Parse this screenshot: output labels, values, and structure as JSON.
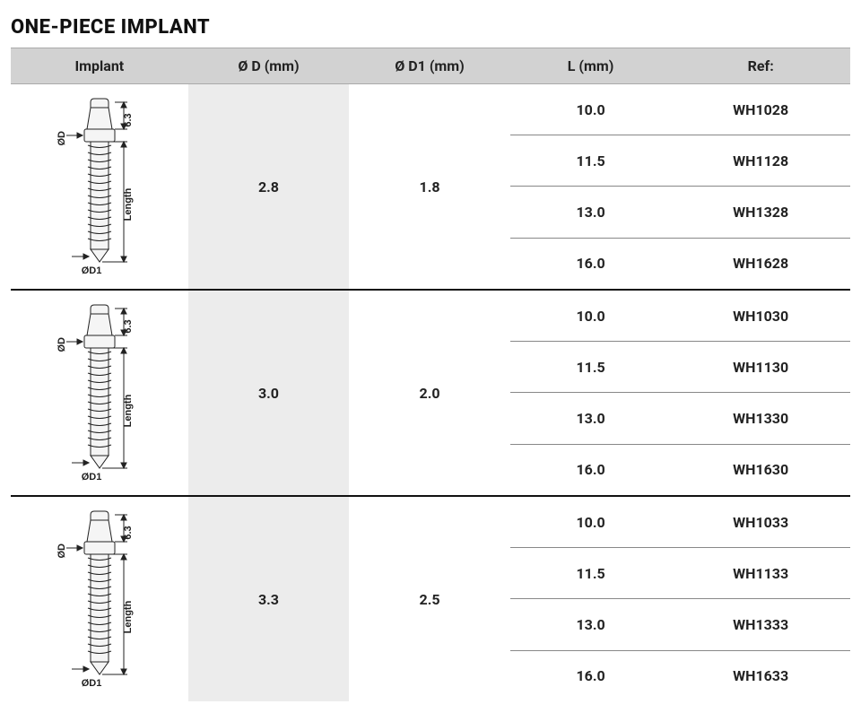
{
  "title": "ONE-PIECE IMPLANT",
  "columns": {
    "implant": "Implant",
    "d": "Ø D (mm)",
    "d1": "Ø D1 (mm)",
    "l": "L (mm)",
    "ref": "Ref:"
  },
  "diagram_labels": {
    "d": "ØD",
    "d1": "ØD1",
    "head_h": "6.3",
    "length": "Length"
  },
  "groups": [
    {
      "d": "2.8",
      "d1": "1.8",
      "rows": [
        {
          "l": "10.0",
          "ref": "WH1028"
        },
        {
          "l": "11.5",
          "ref": "WH1128"
        },
        {
          "l": "13.0",
          "ref": "WH1328"
        },
        {
          "l": "16.0",
          "ref": "WH1628"
        }
      ]
    },
    {
      "d": "3.0",
      "d1": "2.0",
      "rows": [
        {
          "l": "10.0",
          "ref": "WH1030"
        },
        {
          "l": "11.5",
          "ref": "WH1130"
        },
        {
          "l": "13.0",
          "ref": "WH1330"
        },
        {
          "l": "16.0",
          "ref": "WH1630"
        }
      ]
    },
    {
      "d": "3.3",
      "d1": "2.5",
      "rows": [
        {
          "l": "10.0",
          "ref": "WH1033"
        },
        {
          "l": "11.5",
          "ref": "WH1133"
        },
        {
          "l": "13.0",
          "ref": "WH1333"
        },
        {
          "l": "16.0",
          "ref": "WH1633"
        }
      ]
    }
  ],
  "style": {
    "header_bg": "#d2d2d2",
    "shade_bg": "#ececec",
    "row_divider": "#888888",
    "group_divider": "#111111",
    "text_color": "#222222",
    "font_size_title": 22,
    "font_size_header": 16,
    "font_size_cell": 16
  }
}
